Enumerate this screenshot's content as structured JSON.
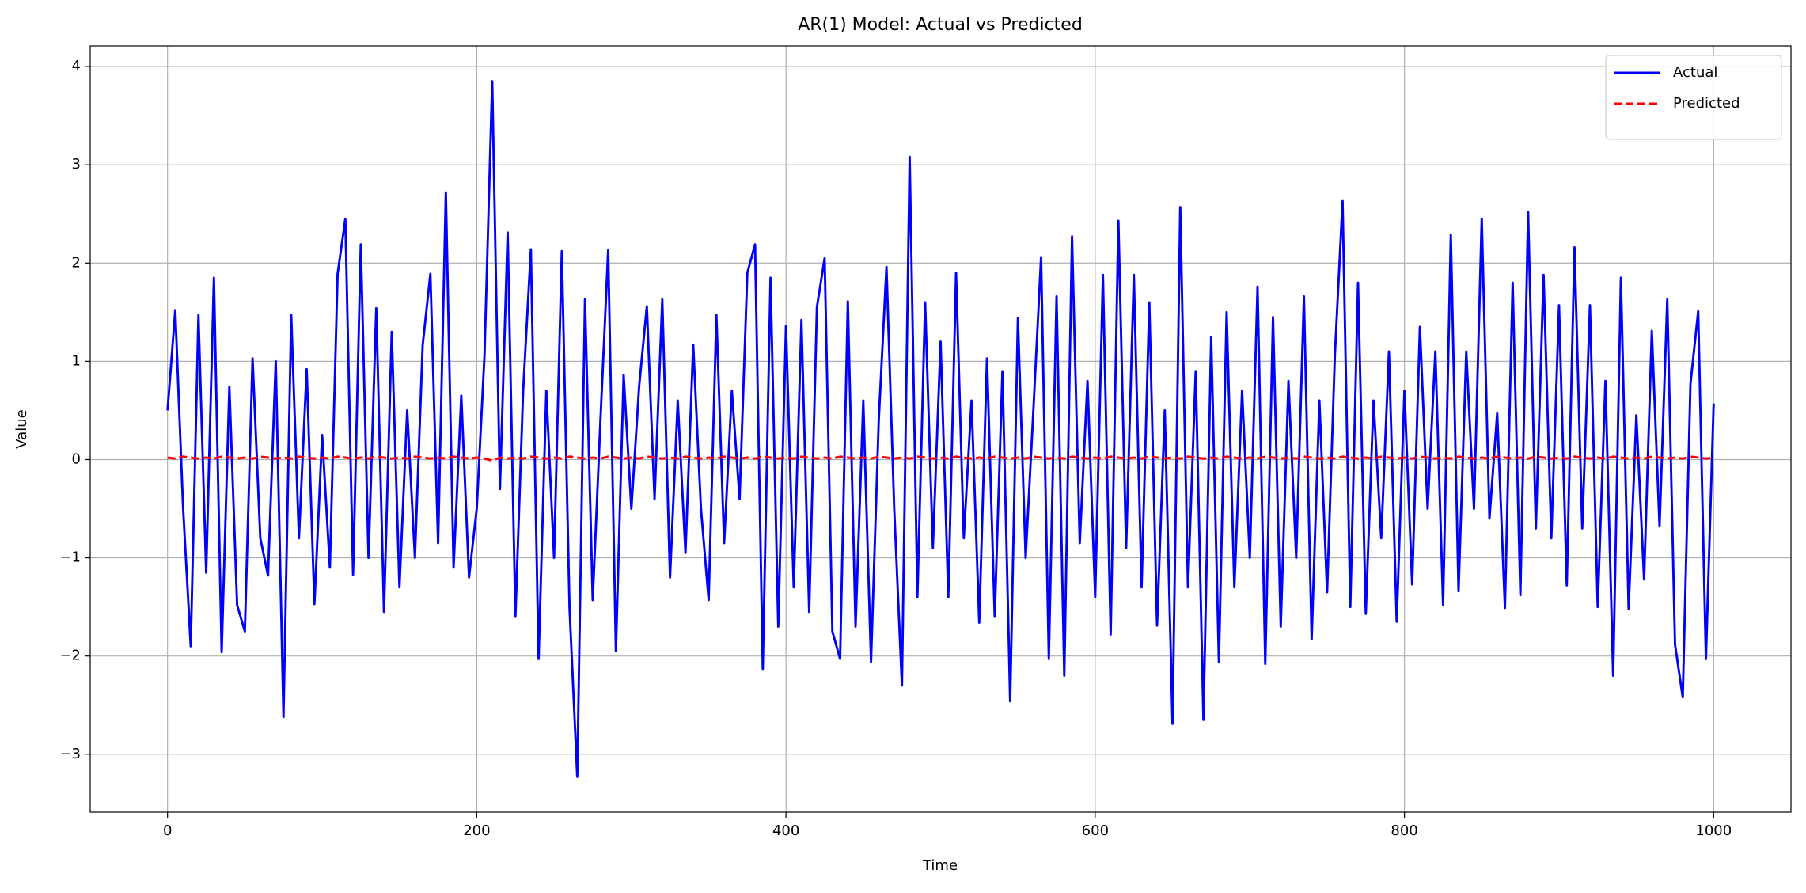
{
  "chart_data": {
    "type": "line",
    "title": "AR(1) Model: Actual vs Predicted",
    "xlabel": "Time",
    "ylabel": "Value",
    "x": [
      0,
      5,
      10,
      15,
      20,
      25,
      30,
      35,
      40,
      45,
      50,
      55,
      60,
      65,
      70,
      75,
      80,
      85,
      90,
      95,
      100,
      105,
      110,
      115,
      120,
      125,
      130,
      135,
      140,
      145,
      150,
      155,
      160,
      165,
      170,
      175,
      180,
      185,
      190,
      195,
      200,
      205,
      210,
      215,
      220,
      225,
      230,
      235,
      240,
      245,
      250,
      255,
      260,
      265,
      270,
      275,
      280,
      285,
      290,
      295,
      300,
      305,
      310,
      315,
      320,
      325,
      330,
      335,
      340,
      345,
      350,
      355,
      360,
      365,
      370,
      375,
      380,
      385,
      390,
      395,
      400,
      405,
      410,
      415,
      420,
      425,
      430,
      435,
      440,
      445,
      450,
      455,
      460,
      465,
      470,
      475,
      480,
      485,
      490,
      495,
      500,
      505,
      510,
      515,
      520,
      525,
      530,
      535,
      540,
      545,
      550,
      555,
      560,
      565,
      570,
      575,
      580,
      585,
      590,
      595,
      600,
      605,
      610,
      615,
      620,
      625,
      630,
      635,
      640,
      645,
      650,
      655,
      660,
      665,
      670,
      675,
      680,
      685,
      690,
      695,
      700,
      705,
      710,
      715,
      720,
      725,
      730,
      735,
      740,
      745,
      750,
      755,
      760,
      765,
      770,
      775,
      780,
      785,
      790,
      795,
      800,
      805,
      810,
      815,
      820,
      825,
      830,
      835,
      840,
      845,
      850,
      855,
      860,
      865,
      870,
      875,
      880,
      885,
      890,
      895,
      900,
      905,
      910,
      915,
      920,
      925,
      930,
      935,
      940,
      945,
      950,
      955,
      960,
      965,
      970,
      975,
      980,
      985,
      990,
      995,
      1000
    ],
    "series": [
      {
        "name": "Actual",
        "color": "#0000ff",
        "dash": false,
        "values": [
          0.5,
          1.52,
          -0.47,
          -1.9,
          1.47,
          -1.15,
          1.85,
          -1.96,
          0.74,
          -1.48,
          -1.75,
          1.03,
          -0.8,
          -1.18,
          1.0,
          -2.62,
          1.47,
          -0.8,
          0.92,
          -1.47,
          0.25,
          -1.1,
          1.89,
          2.45,
          -1.17,
          2.19,
          -1.0,
          1.54,
          -1.55,
          1.3,
          -1.3,
          0.5,
          -1.0,
          1.16,
          1.89,
          -0.85,
          2.72,
          -1.1,
          0.65,
          -1.2,
          -0.5,
          1.06,
          3.85,
          -0.3,
          2.31,
          -1.6,
          0.7,
          2.14,
          -2.03,
          0.7,
          -1.0,
          2.12,
          -1.51,
          -3.23,
          1.63,
          -1.43,
          0.4,
          2.13,
          -1.95,
          0.86,
          -0.5,
          0.74,
          1.56,
          -0.4,
          1.63,
          -1.2,
          0.6,
          -0.95,
          1.17,
          -0.5,
          -1.43,
          1.47,
          -0.85,
          0.7,
          -0.4,
          1.9,
          2.19,
          -2.13,
          1.85,
          -1.7,
          1.36,
          -1.3,
          1.42,
          -1.55,
          1.55,
          2.05,
          -1.75,
          -2.03,
          1.61,
          -1.7,
          0.6,
          -2.06,
          0.4,
          1.96,
          -0.5,
          -2.3,
          3.08,
          -1.4,
          1.6,
          -0.9,
          1.2,
          -1.4,
          1.9,
          -0.8,
          0.6,
          -1.66,
          1.03,
          -1.6,
          0.9,
          -2.46,
          1.44,
          -1.0,
          0.5,
          2.06,
          -2.03,
          1.66,
          -2.2,
          2.27,
          -0.85,
          0.8,
          -1.4,
          1.88,
          -1.78,
          2.43,
          -0.9,
          1.88,
          -1.3,
          1.6,
          -1.69,
          0.5,
          -2.69,
          2.57,
          -1.3,
          0.9,
          -2.65,
          1.25,
          -2.06,
          1.5,
          -1.3,
          0.7,
          -1.0,
          1.76,
          -2.08,
          1.45,
          -1.7,
          0.8,
          -1.0,
          1.66,
          -1.83,
          0.6,
          -1.35,
          1.06,
          2.63,
          -1.5,
          1.8,
          -1.57,
          0.6,
          -0.8,
          1.1,
          -1.65,
          0.7,
          -1.27,
          1.35,
          -0.5,
          1.1,
          -1.48,
          2.29,
          -1.34,
          1.1,
          -0.5,
          2.45,
          -0.6,
          0.47,
          -1.51,
          1.8,
          -1.38,
          2.52,
          -0.7,
          1.88,
          -0.8,
          1.57,
          -1.28,
          2.16,
          -0.7,
          1.57,
          -1.5,
          0.8,
          -2.2,
          1.85,
          -1.52,
          0.45,
          -1.22,
          1.31,
          -0.68,
          1.63,
          -1.88,
          -2.42,
          0.77,
          1.51,
          -2.03,
          0.57
        ]
      },
      {
        "name": "Predicted",
        "color": "#ff0000",
        "dash": true,
        "values": [
          0.02,
          0.01,
          0.03,
          0.02,
          0.01,
          0.02,
          0.01,
          0.03,
          0.02,
          0.01,
          0.02,
          0.01,
          0.03,
          0.02,
          0.01,
          0.02,
          0.01,
          0.03,
          0.02,
          0.01,
          0.02,
          0.01,
          0.03,
          0.02,
          0.01,
          0.02,
          0.01,
          0.03,
          0.02,
          0.01,
          0.02,
          0.01,
          0.03,
          0.02,
          0.01,
          0.02,
          0.01,
          0.03,
          0.02,
          0.01,
          0.02,
          0.01,
          -0.01,
          0.02,
          0.01,
          0.02,
          0.01,
          0.03,
          0.02,
          0.01,
          0.02,
          0.01,
          0.03,
          0.02,
          0.01,
          0.02,
          0.01,
          0.03,
          0.02,
          0.01,
          0.02,
          0.01,
          0.03,
          0.02,
          0.01,
          0.02,
          0.01,
          0.03,
          0.02,
          0.01,
          0.02,
          0.01,
          0.03,
          0.02,
          0.01,
          0.02,
          0.01,
          0.03,
          0.02,
          0.01,
          0.02,
          0.01,
          0.03,
          0.02,
          0.01,
          0.02,
          0.01,
          0.03,
          0.02,
          0.01,
          0.02,
          0.01,
          0.03,
          0.02,
          0.01,
          0.02,
          0.01,
          0.03,
          0.02,
          0.01,
          0.02,
          0.01,
          0.03,
          0.02,
          0.01,
          0.02,
          0.01,
          0.03,
          0.02,
          0.01,
          0.02,
          0.01,
          0.03,
          0.02,
          0.01,
          0.02,
          0.01,
          0.03,
          0.02,
          0.01,
          0.02,
          0.01,
          0.03,
          0.02,
          0.01,
          0.02,
          0.01,
          0.03,
          0.02,
          0.01,
          0.02,
          0.01,
          0.03,
          0.02,
          0.01,
          0.02,
          0.01,
          0.03,
          0.02,
          0.01,
          0.02,
          0.01,
          0.03,
          0.02,
          0.01,
          0.02,
          0.01,
          0.03,
          0.02,
          0.01,
          0.02,
          0.01,
          0.03,
          0.02,
          0.01,
          0.02,
          0.01,
          0.03,
          0.02,
          0.01,
          0.02,
          0.01,
          0.03,
          0.02,
          0.01,
          0.02,
          0.01,
          0.03,
          0.02,
          0.01,
          0.02,
          0.01,
          0.03,
          0.02,
          0.01,
          0.02,
          0.01,
          0.03,
          0.02,
          0.01,
          0.02,
          0.01,
          0.03,
          0.02,
          0.01,
          0.02,
          0.01,
          0.03,
          0.02,
          0.01,
          0.02,
          0.01,
          0.03,
          0.02,
          0.01,
          0.02,
          0.01,
          0.03,
          0.02,
          0.01,
          0.02
        ]
      }
    ],
    "xlim": [
      -50,
      1050
    ],
    "xticks": [
      0,
      200,
      400,
      600,
      800,
      1000
    ],
    "ylim": [
      -3.59,
      4.21
    ],
    "yticks": [
      {
        "value": -3,
        "label": "−3"
      },
      {
        "value": -2,
        "label": "−2"
      },
      {
        "value": -1,
        "label": "−1"
      },
      0,
      1,
      2,
      3,
      4
    ],
    "grid": true,
    "legend": "upper right"
  }
}
